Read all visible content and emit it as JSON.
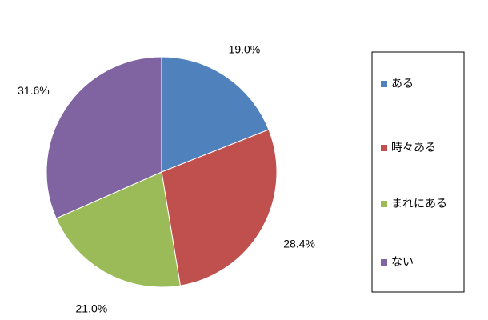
{
  "chart_data": {
    "type": "pie",
    "title": "",
    "categories": [
      "ある",
      "時々ある",
      "まれにある",
      "ない"
    ],
    "values": [
      19.0,
      28.4,
      21.0,
      31.6
    ],
    "labels": [
      "19.0%",
      "28.4%",
      "21.0%",
      "31.6%"
    ],
    "colors": [
      "#4f81bd",
      "#c0504d",
      "#9bbb59",
      "#8064a2"
    ],
    "start_angle_deg": 0,
    "direction": "clockwise",
    "legend_position": "right"
  }
}
